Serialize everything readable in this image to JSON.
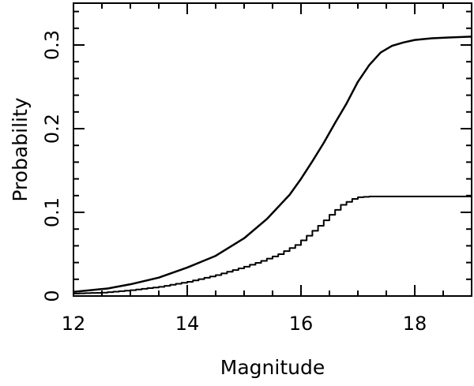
{
  "chart_data": {
    "type": "line",
    "title": "",
    "xlabel": "Magnitude",
    "ylabel": "Probability",
    "xlim": [
      12,
      19
    ],
    "ylim": [
      0,
      0.35
    ],
    "xticks": [
      {
        "value": 12,
        "label": "12"
      },
      {
        "value": 14,
        "label": "14"
      },
      {
        "value": 16,
        "label": "16"
      },
      {
        "value": 18,
        "label": "18"
      }
    ],
    "yticks": [
      {
        "value": 0,
        "label": "0"
      },
      {
        "value": 0.1,
        "label": "0.1"
      },
      {
        "value": 0.2,
        "label": "0.2"
      },
      {
        "value": 0.3,
        "label": "0.3"
      }
    ],
    "grid": false,
    "colors": {
      "line": "#000000",
      "axes": "#000000",
      "background": "#ffffff"
    },
    "series": [
      {
        "style": "smooth",
        "x": [
          12.0,
          12.3,
          12.6,
          13.0,
          13.5,
          14.0,
          14.5,
          15.0,
          15.4,
          15.8,
          16.0,
          16.2,
          16.4,
          16.6,
          16.8,
          17.0,
          17.2,
          17.4,
          17.6,
          17.8,
          18.0,
          18.3,
          18.6,
          19.0
        ],
        "values": [
          0.005,
          0.007,
          0.009,
          0.014,
          0.022,
          0.034,
          0.048,
          0.069,
          0.092,
          0.121,
          0.14,
          0.161,
          0.183,
          0.207,
          0.23,
          0.256,
          0.276,
          0.291,
          0.299,
          0.303,
          0.306,
          0.308,
          0.309,
          0.31
        ]
      },
      {
        "style": "step",
        "x": [
          12.0,
          12.5,
          13.0,
          13.5,
          14.0,
          14.5,
          15.0,
          15.3,
          15.6,
          15.9,
          16.1,
          16.3,
          16.5,
          16.7,
          16.9,
          17.0,
          17.2,
          17.5,
          18.0,
          18.5,
          19.0
        ],
        "values": [
          0.003,
          0.004,
          0.007,
          0.011,
          0.017,
          0.025,
          0.035,
          0.042,
          0.05,
          0.061,
          0.072,
          0.084,
          0.097,
          0.109,
          0.116,
          0.118,
          0.119,
          0.119,
          0.119,
          0.119,
          0.119
        ]
      }
    ]
  }
}
